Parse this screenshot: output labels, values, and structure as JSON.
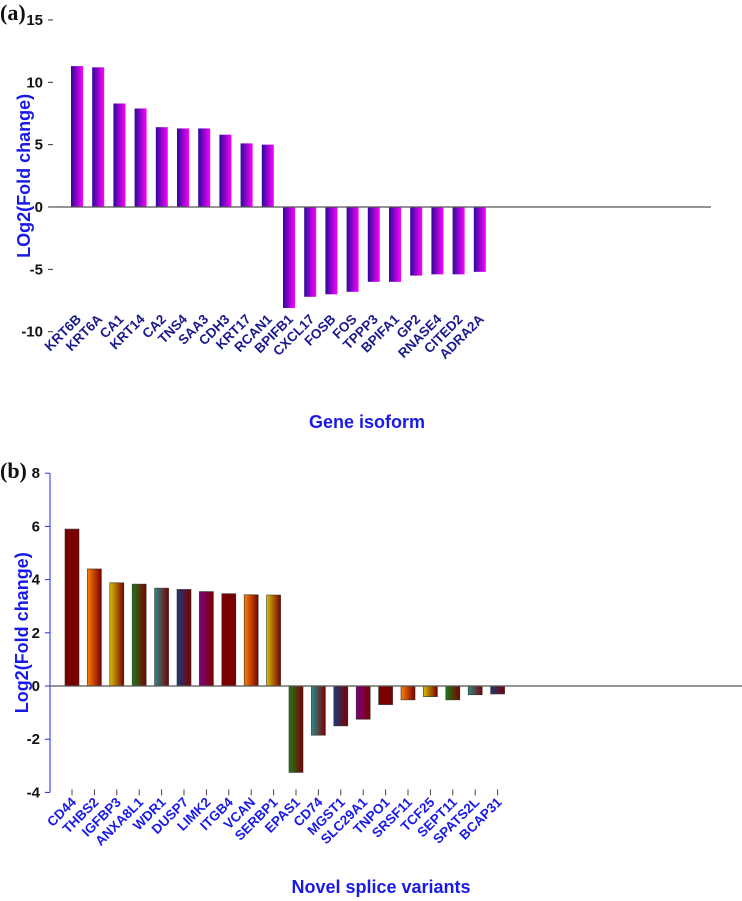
{
  "chart_data": [
    {
      "type": "bar",
      "panel": "(a)",
      "title": "",
      "xlabel": "Gene isoform",
      "ylabel": "LOg2(Fold change)",
      "ylim": [
        -10,
        15
      ],
      "yticks": [
        -10,
        -5,
        0,
        5,
        10,
        15
      ],
      "categories": [
        "KRT6B",
        "KRT6A",
        "CA1",
        "KRT14",
        "CA2",
        "TNS4",
        "SAA3",
        "CDH3",
        "KRT17",
        "RCAN1",
        "BPIFB1",
        "CXCL17",
        "FOSB",
        "FOS",
        "TPPP3",
        "BPIFA1",
        "GP2",
        "RNASE4",
        "CITED2",
        "ADRA2A"
      ],
      "values": [
        11.3,
        11.2,
        8.3,
        7.9,
        6.4,
        6.3,
        6.3,
        5.8,
        5.1,
        5.0,
        -8.1,
        -7.2,
        -7.0,
        -6.8,
        -6.0,
        -6.0,
        -5.5,
        -5.4,
        -5.4,
        -5.2
      ],
      "bar_colors": [
        "#2a0a9a",
        "#ff00ff"
      ],
      "label_color": "#1a1a8c"
    },
    {
      "type": "bar",
      "panel": "(b)",
      "title": "",
      "xlabel": "Novel splice variants",
      "ylabel": "Log2(Fold change)",
      "ylim": [
        -4,
        8
      ],
      "yticks": [
        -4,
        -2,
        0,
        2,
        4,
        6,
        8
      ],
      "categories": [
        "CD44",
        "THBS2",
        "IGFBP3",
        "ANXA8L1",
        "WDR1",
        "DUSP7",
        "LIMK2",
        "ITGB4",
        "VCAN",
        "SERBP1",
        "EPAS1",
        "CD74",
        "MGST1",
        "SLC29A1",
        "TNPO1",
        "SRSF11",
        "TCF25",
        "SEPT11",
        "SPATS2L",
        "BCAP31"
      ],
      "values": [
        5.9,
        4.4,
        3.88,
        3.83,
        3.68,
        3.63,
        3.55,
        3.47,
        3.43,
        3.42,
        -3.25,
        -1.85,
        -1.5,
        -1.25,
        -0.7,
        -0.52,
        -0.4,
        -0.52,
        -0.33,
        -0.3
      ],
      "bar_colors": [
        "#7a0000",
        "#ff8000",
        "#d4c000",
        "#1a7a1a",
        "#2a8a8a",
        "#1a3a7a",
        "#800080",
        "#7a0000",
        "#ff8000",
        "#d4c000",
        "#1a7a1a",
        "#2a8a8a",
        "#1a3a7a",
        "#800080",
        "#7a0000",
        "#ff8000",
        "#d4c000",
        "#1a7a1a",
        "#2a8a8a",
        "#1a3a7a"
      ],
      "gradient_end": "#7a0000",
      "label_color": "#1a1ae6"
    }
  ]
}
